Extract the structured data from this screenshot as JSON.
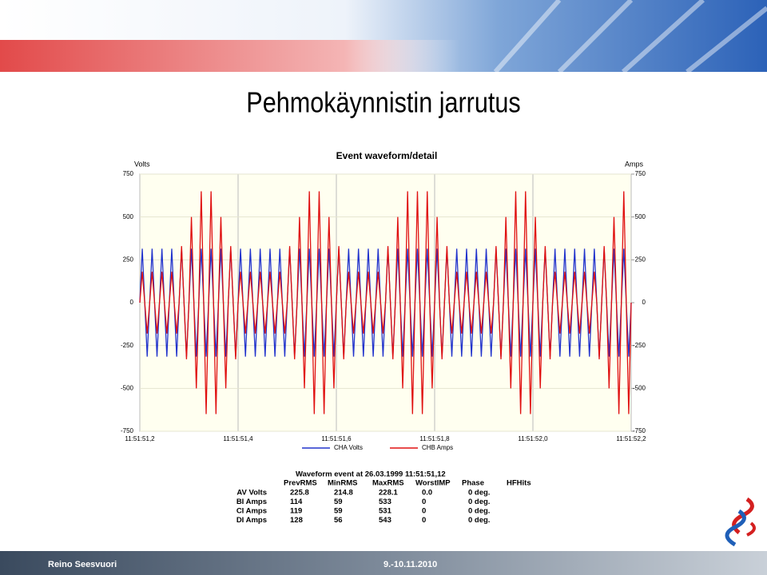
{
  "header": {
    "title": "Pehmokäynnistin jarrutus"
  },
  "chart_data": {
    "type": "line",
    "title": "Event waveform/detail",
    "ylabel": "Volts",
    "y2label": "Amps",
    "xlim": [
      51.2,
      52.2
    ],
    "xticks": [
      {
        "value": 51.2,
        "label": "11:51:51,2"
      },
      {
        "value": 51.4,
        "label": "11:51:51,4"
      },
      {
        "value": 51.6,
        "label": "11:51:51,6"
      },
      {
        "value": 51.8,
        "label": "11:51:51,8"
      },
      {
        "value": 52.0,
        "label": "11:51:52,0"
      },
      {
        "value": 52.2,
        "label": "11:51:52,2"
      }
    ],
    "ylim": [
      -750,
      750
    ],
    "yticks": [
      -750,
      -500,
      -250,
      0,
      250,
      500,
      750
    ],
    "y2lim": [
      -750,
      750
    ],
    "y2ticks": [
      -750,
      -500,
      -250,
      0,
      250,
      500,
      750
    ],
    "grid": true,
    "x": [
      51.2,
      51.205,
      51.21,
      51.215,
      51.22,
      51.225,
      51.23,
      51.235,
      51.24,
      51.245,
      51.25,
      51.255,
      51.26,
      51.265,
      51.27,
      51.275,
      51.28,
      51.285,
      51.29,
      51.295,
      51.3,
      51.305,
      51.31,
      51.315,
      51.32,
      51.325,
      51.33,
      51.335,
      51.34,
      51.345,
      51.35,
      51.355,
      51.36,
      51.365,
      51.37,
      51.375,
      51.38,
      51.385,
      51.39,
      51.395,
      51.4,
      51.405,
      51.41,
      51.415,
      51.42,
      51.425,
      51.43,
      51.435,
      51.44,
      51.445,
      51.45,
      51.455,
      51.46,
      51.465,
      51.47,
      51.475,
      51.48,
      51.485,
      51.49,
      51.495,
      51.5,
      51.505,
      51.51,
      51.515,
      51.52,
      51.525,
      51.53,
      51.535,
      51.54,
      51.545,
      51.55,
      51.555,
      51.56,
      51.565,
      51.57,
      51.575,
      51.58,
      51.585,
      51.59,
      51.595,
      51.6,
      51.605,
      51.61,
      51.615,
      51.62,
      51.625,
      51.63,
      51.635,
      51.64,
      51.645,
      51.65,
      51.655,
      51.66,
      51.665,
      51.67,
      51.675,
      51.68,
      51.685,
      51.69,
      51.695,
      51.7,
      51.705,
      51.71,
      51.715,
      51.72,
      51.725,
      51.73,
      51.735,
      51.74,
      51.745,
      51.75,
      51.755,
      51.76,
      51.765,
      51.77,
      51.775,
      51.78,
      51.785,
      51.79,
      51.795,
      51.8,
      51.805,
      51.81,
      51.815,
      51.82,
      51.825,
      51.83,
      51.835,
      51.84,
      51.845,
      51.85,
      51.855,
      51.86,
      51.865,
      51.87,
      51.875,
      51.88,
      51.885,
      51.89,
      51.895,
      51.9,
      51.905,
      51.91,
      51.915,
      51.92,
      51.925,
      51.93,
      51.935,
      51.94,
      51.945,
      51.95,
      51.955,
      51.96,
      51.965,
      51.97,
      51.975,
      51.98,
      51.985,
      51.99,
      51.995,
      52.0,
      52.005,
      52.01,
      52.015,
      52.02,
      52.025,
      52.03,
      52.035,
      52.04,
      52.045,
      52.05,
      52.055,
      52.06,
      52.065,
      52.07,
      52.075,
      52.08,
      52.085,
      52.09,
      52.095,
      52.1,
      52.105,
      52.11,
      52.115,
      52.12,
      52.125,
      52.13,
      52.135,
      52.14,
      52.145,
      52.15,
      52.155,
      52.16,
      52.165,
      52.17,
      52.175,
      52.18,
      52.185,
      52.19,
      52.195,
      52.2
    ],
    "series": [
      {
        "name": "CHA Volts",
        "color": "#2233cc",
        "values": [
          0,
          315,
          0,
          -315,
          0,
          315,
          0,
          -315,
          0,
          315,
          0,
          -315,
          0,
          315,
          0,
          -315,
          0,
          315,
          0,
          -315,
          0,
          315,
          0,
          -315,
          0,
          315,
          0,
          -315,
          0,
          315,
          0,
          -315,
          0,
          315,
          0,
          -315,
          0,
          315,
          0,
          -315,
          0,
          315,
          0,
          -315,
          0,
          315,
          0,
          -315,
          0,
          315,
          0,
          -315,
          0,
          315,
          0,
          -315,
          0,
          315,
          0,
          -315,
          0,
          315,
          0,
          -315,
          0,
          315,
          0,
          -315,
          0,
          315,
          0,
          -315,
          0,
          315,
          0,
          -315,
          0,
          315,
          0,
          -315,
          0,
          315,
          0,
          -315,
          0,
          315,
          0,
          -315,
          0,
          315,
          0,
          -315,
          0,
          315,
          0,
          -315,
          0,
          315,
          0,
          -315,
          0,
          315,
          0,
          -315,
          0,
          315,
          0,
          -315,
          0,
          315,
          0,
          -315,
          0,
          315,
          0,
          -315,
          0,
          315,
          0,
          -315,
          0,
          315,
          0,
          -315,
          0,
          315,
          0,
          -315,
          0,
          315,
          0,
          -315,
          0,
          315,
          0,
          -315,
          0,
          315,
          0,
          -315,
          0,
          315,
          0,
          -315,
          0,
          315,
          0,
          -315,
          0,
          315,
          0,
          -315,
          0,
          315,
          0,
          -315,
          0,
          315,
          0,
          -315,
          0,
          315,
          0,
          -315,
          0,
          315,
          0,
          -315,
          0,
          315,
          0,
          -315,
          0,
          315,
          0,
          -315,
          0,
          315,
          0,
          -315,
          0,
          315,
          0,
          -315,
          0,
          315,
          0,
          -315,
          0,
          315,
          0,
          -315,
          0,
          315,
          0,
          -315,
          0,
          315,
          0,
          -315,
          0
        ]
      },
      {
        "name": "CHB Amps",
        "color": "#e01010",
        "axis": "y2",
        "values": [
          0,
          180,
          0,
          -180,
          0,
          180,
          0,
          -180,
          0,
          180,
          0,
          -180,
          0,
          180,
          0,
          -180,
          0,
          330,
          0,
          -330,
          0,
          500,
          0,
          -500,
          0,
          650,
          0,
          -650,
          0,
          650,
          0,
          -650,
          0,
          500,
          0,
          -500,
          0,
          330,
          0,
          -330,
          0,
          180,
          0,
          -180,
          0,
          180,
          0,
          -180,
          0,
          180,
          0,
          -180,
          0,
          180,
          0,
          -180,
          0,
          180,
          0,
          -180,
          0,
          330,
          0,
          -330,
          0,
          500,
          0,
          -500,
          0,
          650,
          0,
          -650,
          0,
          650,
          0,
          -650,
          0,
          500,
          0,
          -500,
          0,
          330,
          0,
          -330,
          0,
          180,
          0,
          -180,
          0,
          180,
          0,
          -180,
          0,
          180,
          0,
          -180,
          0,
          180,
          0,
          -180,
          0,
          330,
          0,
          -330,
          0,
          500,
          0,
          -500,
          0,
          650,
          0,
          -650,
          0,
          650,
          0,
          -650,
          0,
          650,
          0,
          -500,
          0,
          500,
          0,
          -330,
          0,
          330,
          0,
          -180,
          0,
          180,
          0,
          -180,
          0,
          180,
          0,
          -180,
          0,
          180,
          0,
          -180,
          0,
          180,
          0,
          -180,
          0,
          330,
          0,
          -330,
          0,
          500,
          0,
          -500,
          0,
          650,
          0,
          -650,
          0,
          650,
          0,
          -650,
          0,
          500,
          0,
          -500,
          0,
          330,
          0,
          -330,
          0,
          180,
          0,
          -180,
          0,
          180,
          0,
          -180,
          0,
          180,
          0,
          -180,
          0,
          180,
          0,
          -180,
          0,
          180,
          0,
          -330,
          0,
          330,
          0,
          -500,
          0,
          500,
          0,
          -650,
          0,
          650,
          0,
          -650,
          0
        ]
      }
    ]
  },
  "table": {
    "title": "Waveform event at 26.03.1999 11:51:51,12",
    "columns": [
      "PrevRMS",
      "MinRMS",
      "MaxRMS",
      "WorstIMP",
      "Phase",
      "HFHits"
    ],
    "rows": [
      [
        "AV Volts",
        "225.8",
        "214.8",
        "228.1",
        "0.0",
        "0 deg."
      ],
      [
        "BI Amps",
        "114",
        "59",
        "533",
        "0",
        "0 deg."
      ],
      [
        "CI Amps",
        "119",
        "59",
        "531",
        "0",
        "0 deg."
      ],
      [
        "DI Amps",
        "128",
        "56",
        "543",
        "0",
        "0 deg."
      ]
    ]
  },
  "footer": {
    "author": "Reino Seesvuori",
    "date": "9.-10.11.2010"
  }
}
